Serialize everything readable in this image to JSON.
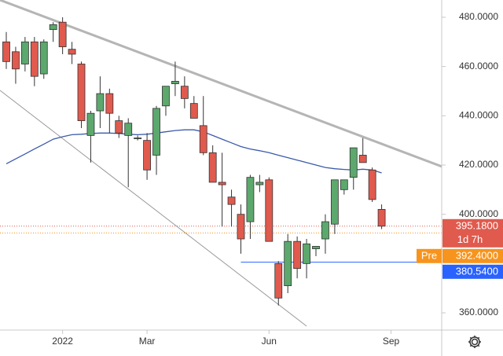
{
  "chart_data": {
    "type": "candlestick",
    "xlim": [
      -0.67,
      46.4
    ],
    "xticks": [
      {
        "value": 6,
        "label": "2022"
      },
      {
        "value": 15,
        "label": "Mar"
      },
      {
        "value": 28,
        "label": "Jun"
      },
      {
        "value": 41,
        "label": "Sep"
      }
    ],
    "ylim": [
      353,
      487
    ],
    "yticks": [
      {
        "value": 360,
        "label": "360.0000"
      },
      {
        "value": 400,
        "label": "400.0000"
      },
      {
        "value": 420,
        "label": "420.0000"
      },
      {
        "value": 440,
        "label": "440.0000"
      },
      {
        "value": 460,
        "label": "460.0000"
      },
      {
        "value": 480,
        "label": "480.0000"
      }
    ],
    "up_color": "#5ca86d",
    "down_color": "#e05a4e",
    "open": [
      470,
      466,
      461,
      470,
      457,
      475,
      478,
      467,
      461,
      432,
      442,
      449,
      438,
      432,
      431,
      430,
      424,
      444,
      453,
      452,
      445,
      436,
      425,
      413,
      407,
      400,
      397,
      412,
      414,
      380,
      371,
      389,
      380,
      386,
      390,
      396,
      410,
      415,
      424,
      418,
      402
    ],
    "high": [
      474,
      468,
      472,
      472,
      471,
      478,
      480,
      470,
      462,
      442,
      456,
      451,
      440,
      439,
      432,
      433,
      444,
      452,
      462,
      456,
      448,
      448,
      428,
      425,
      410,
      404,
      416,
      416,
      415,
      381,
      392,
      391,
      390,
      387,
      400,
      413,
      414,
      427,
      431,
      419,
      404
    ],
    "low": [
      459,
      453,
      458,
      452,
      455,
      470,
      465,
      461,
      435,
      421,
      435,
      433,
      431,
      411,
      430,
      414,
      416,
      440,
      448,
      443,
      439,
      424,
      413,
      395,
      395,
      384,
      390,
      409,
      390,
      363,
      368,
      374,
      374,
      383,
      384,
      392,
      408,
      410,
      422,
      405,
      394
    ],
    "close": [
      462,
      459,
      470,
      456,
      470,
      477,
      468,
      465,
      438,
      441,
      449,
      441,
      433,
      437,
      431,
      418,
      443,
      452,
      454,
      447,
      439,
      425,
      413,
      412,
      404,
      390,
      415,
      413,
      389,
      366,
      389,
      378,
      388,
      387,
      397,
      414,
      414,
      427,
      421,
      406,
      395.18
    ],
    "ma": {
      "color": "#3b5ba9",
      "values": [
        420.5,
        422.5,
        424.5,
        426.5,
        428.5,
        430.5,
        431.5,
        432.3,
        432.5,
        432.8,
        433,
        433,
        432.8,
        432.5,
        432.3,
        432.5,
        433,
        433.5,
        434,
        434.3,
        434.3,
        433.5,
        432,
        430.5,
        429,
        427.5,
        426.5,
        425.8,
        425,
        424,
        423,
        422,
        421,
        420,
        419,
        418.5,
        418.2,
        418,
        418.3,
        418,
        416.8
      ]
    },
    "trendlines": [
      {
        "from": [
          -0.67,
          487
        ],
        "to": [
          46.4,
          419.4
        ],
        "color": "#b5b5b5",
        "width": 3
      },
      {
        "from": [
          -0.67,
          450.3
        ],
        "to": [
          32,
          354.6
        ],
        "color": "#9a9a9a",
        "width": 1
      }
    ],
    "price_labels": [
      {
        "value": 395.18,
        "label": "395.1800",
        "sublabel": "1d 7h",
        "color": "#e05a4e",
        "line": "dotted"
      },
      {
        "value": 392.4,
        "label": "392.4000",
        "tag": "Pre",
        "color": "#f7941d",
        "line": "dotted"
      },
      {
        "value": 380.54,
        "label": "380.5400",
        "color": "#2962ff",
        "line": "solid",
        "from": 25
      }
    ]
  }
}
